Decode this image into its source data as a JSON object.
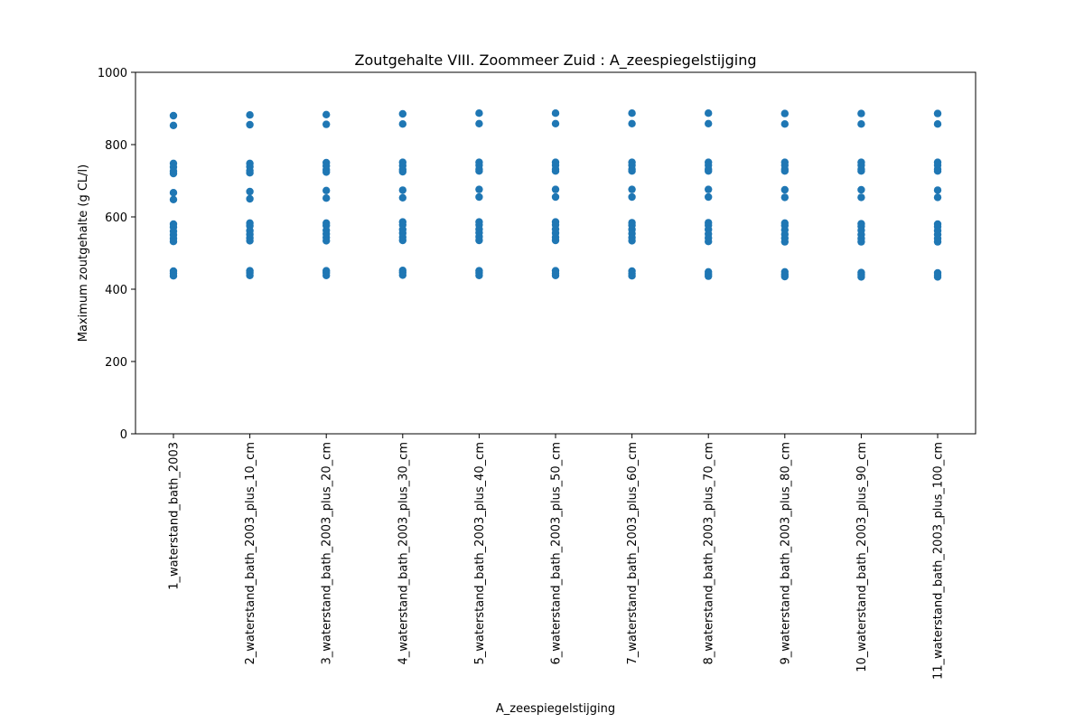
{
  "chart_data": {
    "type": "scatter",
    "title": "Zoutgehalte VIII. Zoommeer Zuid : A_zeespiegelstijging",
    "xlabel": "A_zeespiegelstijging",
    "ylabel": "Maximum zoutgehalte (g CL/l)",
    "ylim": [
      0,
      1000
    ],
    "yticks": [
      0,
      200,
      400,
      600,
      800,
      1000
    ],
    "grid": false,
    "marker_color": "#1f77b4",
    "categories": [
      "1_waterstand_bath_2003",
      "2_waterstand_bath_2003_plus_10_cm",
      "3_waterstand_bath_2003_plus_20_cm",
      "4_waterstand_bath_2003_plus_30_cm",
      "5_waterstand_bath_2003_plus_40_cm",
      "6_waterstand_bath_2003_plus_50_cm",
      "7_waterstand_bath_2003_plus_60_cm",
      "8_waterstand_bath_2003_plus_70_cm",
      "9_waterstand_bath_2003_plus_80_cm",
      "10_waterstand_bath_2003_plus_90_cm",
      "11_waterstand_bath_2003_plus_100_cm"
    ],
    "values": [
      [
        880,
        853,
        748,
        738,
        727,
        720,
        667,
        648,
        580,
        572,
        560,
        550,
        540,
        532,
        450,
        444,
        437
      ],
      [
        882,
        855,
        748,
        739,
        728,
        722,
        670,
        650,
        583,
        575,
        562,
        552,
        542,
        534,
        451,
        445,
        438
      ],
      [
        883,
        856,
        750,
        741,
        730,
        724,
        673,
        652,
        583,
        576,
        563,
        553,
        543,
        534,
        451,
        445,
        438
      ],
      [
        885,
        857,
        751,
        742,
        731,
        725,
        674,
        653,
        586,
        578,
        565,
        555,
        544,
        535,
        452,
        446,
        439
      ],
      [
        887,
        858,
        751,
        743,
        732,
        727,
        676,
        655,
        586,
        578,
        566,
        556,
        545,
        535,
        451,
        445,
        438
      ],
      [
        887,
        858,
        751,
        743,
        732,
        727,
        676,
        655,
        586,
        578,
        566,
        555,
        544,
        535,
        451,
        444,
        438
      ],
      [
        887,
        858,
        751,
        743,
        732,
        727,
        676,
        655,
        584,
        577,
        565,
        554,
        543,
        534,
        450,
        443,
        437
      ],
      [
        887,
        858,
        751,
        743,
        732,
        727,
        676,
        655,
        584,
        577,
        565,
        553,
        542,
        532,
        448,
        442,
        436
      ],
      [
        886,
        857,
        751,
        743,
        732,
        727,
        675,
        654,
        583,
        576,
        564,
        552,
        541,
        531,
        448,
        441,
        435
      ],
      [
        886,
        857,
        751,
        743,
        732,
        727,
        675,
        654,
        581,
        574,
        563,
        551,
        540,
        531,
        446,
        440,
        434
      ],
      [
        886,
        857,
        751,
        743,
        732,
        727,
        674,
        654,
        580,
        573,
        562,
        551,
        540,
        531,
        445,
        439,
        434
      ]
    ]
  }
}
